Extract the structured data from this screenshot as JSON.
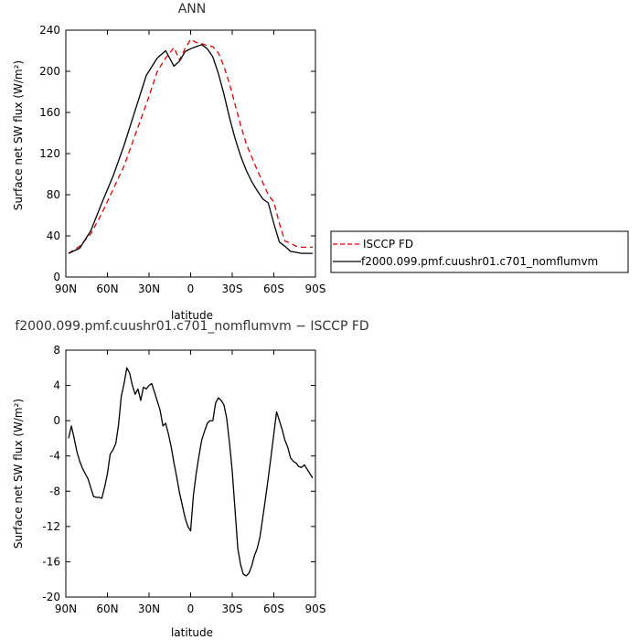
{
  "chart_data": [
    {
      "type": "line",
      "title": "ANN",
      "xlabel": "latitude",
      "ylabel": "Surface net SW flux (W/m²)",
      "xlim": [
        90,
        -90
      ],
      "ylim": [
        0,
        240
      ],
      "x_ticks": [
        90,
        60,
        30,
        0,
        -30,
        -60,
        -90
      ],
      "x_tick_labels": [
        "90N",
        "60N",
        "30N",
        "0",
        "30S",
        "60S",
        "90S"
      ],
      "y_ticks": [
        0,
        40,
        80,
        120,
        160,
        200,
        240
      ],
      "y_tick_labels": [
        "0",
        "40",
        "80",
        "120",
        "160",
        "200",
        "240"
      ],
      "legend_position": "right",
      "series": [
        {
          "name": "ISCCP FD",
          "color": "#e00000",
          "dash": "dashed",
          "x": [
            88,
            80,
            72,
            64,
            56,
            48,
            40,
            32,
            24,
            18,
            12,
            8,
            4,
            0,
            -4,
            -8,
            -12,
            -16,
            -20,
            -24,
            -28,
            -32,
            -36,
            -40,
            -44,
            -48,
            -52,
            -56,
            -60,
            -64,
            -68,
            -72,
            -76,
            -80,
            -84,
            -88
          ],
          "y": [
            23,
            30,
            42,
            62,
            85,
            108,
            138,
            168,
            200,
            213,
            223,
            211,
            222,
            231,
            228,
            227,
            225,
            224,
            218,
            205,
            188,
            168,
            148,
            130,
            117,
            104,
            92,
            80,
            73,
            52,
            35,
            33,
            30,
            29,
            29,
            29
          ]
        },
        {
          "name": "f2000.099.pmf.cuushr01.c701_nomflumvm",
          "color": "#000000",
          "dash": "solid",
          "x": [
            88,
            80,
            72,
            64,
            56,
            48,
            40,
            32,
            24,
            18,
            12,
            8,
            4,
            0,
            -4,
            -8,
            -12,
            -16,
            -20,
            -24,
            -28,
            -32,
            -36,
            -40,
            -44,
            -48,
            -52,
            -56,
            -60,
            -64,
            -68,
            -72,
            -76,
            -80,
            -84,
            -88
          ],
          "y": [
            23,
            28,
            45,
            72,
            98,
            128,
            162,
            196,
            213,
            220,
            205,
            210,
            219,
            222,
            224,
            226,
            222,
            214,
            198,
            178,
            155,
            135,
            118,
            104,
            93,
            84,
            76,
            72,
            52,
            34,
            30,
            25,
            24,
            23,
            23,
            23
          ]
        }
      ]
    },
    {
      "type": "line",
      "title": "f2000.099.pmf.cuushr01.c701_nomflumvm − ISCCP FD",
      "xlabel": "latitude",
      "ylabel": "Surface net SW flux (W/m²)",
      "xlim": [
        90,
        -90
      ],
      "ylim": [
        -20,
        8
      ],
      "x_ticks": [
        90,
        60,
        30,
        0,
        -30,
        -60,
        -90
      ],
      "x_tick_labels": [
        "90N",
        "60N",
        "30N",
        "0",
        "30S",
        "60S",
        "90S"
      ],
      "y_ticks": [
        -20,
        -16,
        -12,
        -8,
        -4,
        0,
        4,
        8
      ],
      "y_tick_labels": [
        "-20",
        "-16",
        "-12",
        "-8",
        "-4",
        "0",
        "4",
        "8"
      ],
      "series": [
        {
          "color": "#000000",
          "dash": "solid",
          "x": [
            88,
            86,
            84,
            82,
            80,
            78,
            76,
            74,
            72,
            70,
            68,
            66,
            64,
            62,
            60,
            58,
            56,
            54,
            52,
            50,
            48,
            46,
            44,
            42,
            40,
            38,
            36,
            34,
            32,
            30,
            28,
            26,
            24,
            22,
            20,
            18,
            16,
            14,
            12,
            10,
            8,
            6,
            4,
            2,
            0,
            -2,
            -4,
            -6,
            -8,
            -10,
            -12,
            -14,
            -16,
            -18,
            -20,
            -22,
            -24,
            -26,
            -28,
            -30,
            -32,
            -34,
            -36,
            -38,
            -40,
            -42,
            -44,
            -46,
            -48,
            -50,
            -52,
            -54,
            -56,
            -58,
            -60,
            -62,
            -64,
            -66,
            -68,
            -70,
            -72,
            -74,
            -76,
            -78,
            -80,
            -82,
            -84,
            -86,
            -88
          ],
          "y": [
            -2.0,
            -0.6,
            -2.0,
            -3.5,
            -4.6,
            -5.4,
            -6.0,
            -6.6,
            -7.6,
            -8.6,
            -8.7,
            -8.7,
            -8.8,
            -7.5,
            -6.0,
            -3.8,
            -3.3,
            -2.6,
            -0.5,
            2.8,
            4.2,
            6.0,
            5.4,
            4.0,
            3.0,
            3.6,
            2.3,
            3.8,
            3.6,
            4.0,
            4.2,
            3.2,
            2.2,
            1.2,
            -0.6,
            -0.3,
            -1.5,
            -3.0,
            -4.8,
            -6.4,
            -8.2,
            -9.6,
            -11.0,
            -12.0,
            -12.5,
            -8.5,
            -6.0,
            -4.0,
            -2.2,
            -1.2,
            -0.3,
            0.0,
            0.0,
            2.0,
            2.6,
            2.3,
            1.8,
            0.3,
            -2.5,
            -5.7,
            -10.0,
            -14.5,
            -16.3,
            -17.4,
            -17.6,
            -17.3,
            -16.5,
            -15.3,
            -14.5,
            -13.2,
            -11.0,
            -8.8,
            -6.5,
            -4.0,
            -1.5,
            1.0,
            0.0,
            -1.0,
            -2.2,
            -3.0,
            -4.2,
            -4.6,
            -4.8,
            -5.2,
            -5.3,
            -5.0,
            -5.5,
            -6.0,
            -6.5
          ]
        }
      ]
    }
  ]
}
